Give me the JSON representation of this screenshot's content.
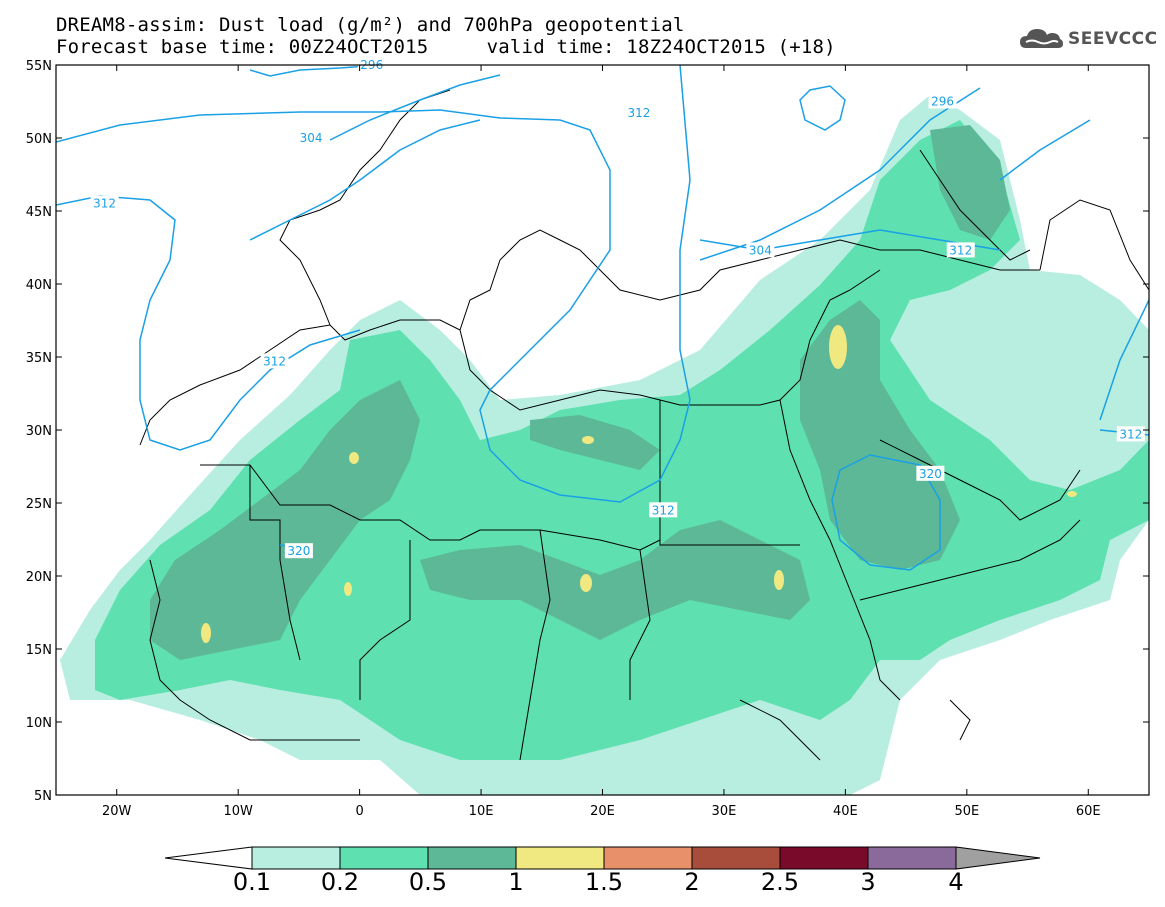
{
  "header": {
    "line1": "DREAM8-assim: Dust load (g/m²) and 700hPa geopotential",
    "line2": "Forecast base time: 00Z24OCT2015     valid time: 18Z24OCT2015 (+18)"
  },
  "logo": {
    "text": "SEEVCCC",
    "icon": "cloud-icon"
  },
  "map": {
    "lon_range": [
      -25,
      65
    ],
    "lat_range": [
      5,
      55
    ],
    "lat_labels": [
      "55N",
      "50N",
      "45N",
      "40N",
      "35N",
      "30N",
      "25N",
      "20N",
      "15N",
      "10N",
      "5N"
    ],
    "lon_labels": [
      "20W",
      "10W",
      "0",
      "10E",
      "20E",
      "30E",
      "40E",
      "50E",
      "60E"
    ],
    "contour_labels": [
      {
        "text": "296",
        "lon": 1,
        "lat": 55
      },
      {
        "text": "296",
        "lon": 48,
        "lat": 52.5
      },
      {
        "text": "304",
        "lon": -4,
        "lat": 50
      },
      {
        "text": "312",
        "lon": -21,
        "lat": 45.5
      },
      {
        "text": "312",
        "lon": 23,
        "lat": 51.7
      },
      {
        "text": "304",
        "lon": 33,
        "lat": 42.3
      },
      {
        "text": "312",
        "lon": 49.5,
        "lat": 42.3
      },
      {
        "text": "312",
        "lon": -7,
        "lat": 34.7
      },
      {
        "text": "312",
        "lon": 25,
        "lat": 24.5
      },
      {
        "text": "320",
        "lon": -5,
        "lat": 21.7
      },
      {
        "text": "320",
        "lon": 47,
        "lat": 27
      },
      {
        "text": "312",
        "lon": 63.5,
        "lat": 29.7
      }
    ],
    "colors": {
      "contour": "#1aa0e6",
      "border": "#000000"
    }
  },
  "colorbar": {
    "labels": [
      "0.1",
      "0.2",
      "0.5",
      "1",
      "1.5",
      "2",
      "2.5",
      "3",
      "4"
    ],
    "colors": [
      "#b8eee0",
      "#5ee0b0",
      "#5cb896",
      "#f0e880",
      "#e8906a",
      "#a84c3c",
      "#7a0a2a",
      "#8a6a9a"
    ],
    "under_color": "#ffffff",
    "over_color": "#a0a0a0"
  }
}
